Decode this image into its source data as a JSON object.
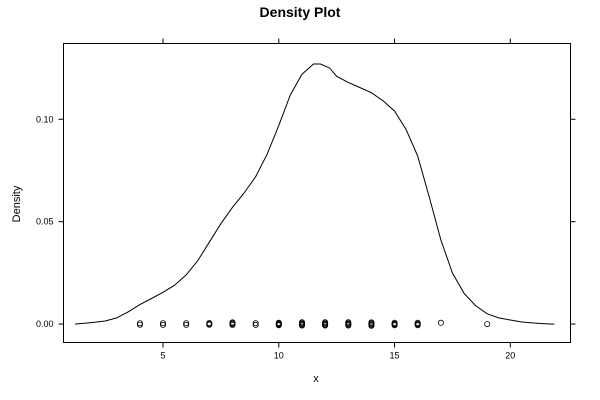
{
  "chart_data": {
    "type": "line",
    "title": "Density Plot",
    "xlabel": "x",
    "ylabel": "Density",
    "xlim": [
      0.7,
      22.6
    ],
    "ylim": [
      -0.009,
      0.137
    ],
    "x_ticks": [
      5,
      10,
      15,
      20
    ],
    "x_tick_labels": [
      "5",
      "10",
      "15",
      "20"
    ],
    "y_ticks": [
      0.0,
      0.05,
      0.1
    ],
    "y_tick_labels": [
      "0.00",
      "0.05",
      "0.10"
    ],
    "grid": false,
    "series": [
      {
        "type": "line",
        "x": [
          1.2,
          2.0,
          2.5,
          3.0,
          3.5,
          4.0,
          4.5,
          5.0,
          5.5,
          6.0,
          6.5,
          7.0,
          7.5,
          8.0,
          8.5,
          9.0,
          9.5,
          10.0,
          10.5,
          11.0,
          11.5,
          11.8,
          12.2,
          12.5,
          13.0,
          13.5,
          14.0,
          14.5,
          15.0,
          15.5,
          16.0,
          16.5,
          17.0,
          17.5,
          18.0,
          18.5,
          19.0,
          19.5,
          20.0,
          20.5,
          21.0,
          21.5,
          21.9
        ],
        "y": [
          0.0,
          0.0008,
          0.0015,
          0.003,
          0.006,
          0.0095,
          0.0125,
          0.0155,
          0.019,
          0.024,
          0.031,
          0.04,
          0.049,
          0.057,
          0.064,
          0.072,
          0.083,
          0.097,
          0.112,
          0.122,
          0.127,
          0.127,
          0.125,
          0.121,
          0.118,
          0.1155,
          0.113,
          0.109,
          0.104,
          0.095,
          0.082,
          0.062,
          0.041,
          0.025,
          0.015,
          0.009,
          0.005,
          0.003,
          0.002,
          0.001,
          0.0005,
          0.0002,
          0.0
        ]
      },
      {
        "type": "scatter",
        "marker": "open-circle",
        "x": [
          4,
          4,
          5,
          5,
          6,
          6,
          7,
          7,
          7,
          8,
          8,
          8,
          8,
          9,
          9,
          10,
          10,
          10,
          10,
          10,
          11,
          11,
          11,
          11,
          11,
          12,
          12,
          12,
          12,
          12,
          13,
          13,
          13,
          13,
          13,
          14,
          14,
          14,
          14,
          14,
          15,
          15,
          15,
          15,
          16,
          16,
          16,
          16,
          17,
          19
        ],
        "y": [
          0.0004,
          -0.0003,
          0.0004,
          -0.0004,
          0.0004,
          -0.0004,
          0.0005,
          0.0001,
          -0.0003,
          0.0008,
          0.0004,
          0.0,
          -0.0004,
          0.0004,
          -0.0004,
          0.0006,
          0.0003,
          0.0,
          -0.0003,
          -0.0006,
          0.0009,
          0.0005,
          0.0001,
          -0.0003,
          -0.0007,
          0.0009,
          0.0005,
          0.0001,
          -0.0003,
          -0.0007,
          0.0009,
          0.0005,
          0.0001,
          -0.0003,
          -0.0007,
          0.0008,
          0.0004,
          0.0,
          -0.0004,
          -0.0008,
          0.0006,
          0.0002,
          -0.0002,
          -0.0006,
          0.0006,
          0.0002,
          -0.0002,
          -0.0006,
          0.0006,
          0.0
        ]
      }
    ],
    "colors": {
      "line": "#000000",
      "points": "#000000",
      "background": "#ffffff"
    }
  }
}
